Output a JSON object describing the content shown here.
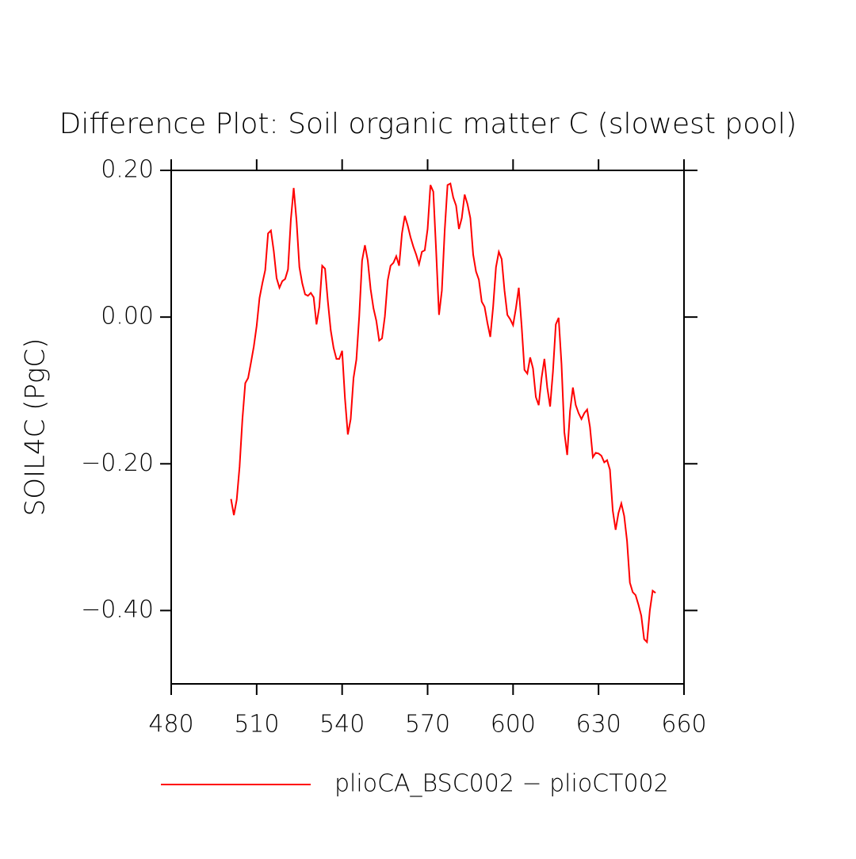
{
  "chart_data": {
    "type": "line",
    "title": "Difference Plot: Soil organic matter C (slowest pool)",
    "y_label": "SOIL4C  (PgC)",
    "xlim": [
      480,
      660
    ],
    "xticks": [
      480,
      510,
      540,
      570,
      600,
      630,
      660
    ],
    "ylim": [
      -0.5,
      0.2
    ],
    "yticks": [
      {
        "value": 0.2,
        "label": "0.20"
      },
      {
        "value": 0,
        "label": "0.00"
      },
      {
        "value": -0.2,
        "label": "−0.20"
      },
      {
        "value": -0.4,
        "label": "−0.40"
      }
    ],
    "legend": "bottom",
    "x": [
      501,
      502,
      503,
      504,
      505,
      506,
      507,
      508,
      509,
      510,
      511,
      512,
      513,
      514,
      515,
      516,
      517,
      518,
      519,
      520,
      521,
      522,
      523,
      524,
      525,
      526,
      527,
      528,
      529,
      530,
      531,
      532,
      533,
      534,
      535,
      536,
      537,
      538,
      539,
      540,
      541,
      542,
      543,
      544,
      545,
      546,
      547,
      548,
      549,
      550,
      551,
      552,
      553,
      554,
      555,
      556,
      557,
      558,
      559,
      560,
      561,
      562,
      563,
      564,
      565,
      566,
      567,
      568,
      569,
      570,
      571,
      572,
      573,
      574,
      575,
      576,
      577,
      578,
      579,
      580,
      581,
      582,
      583,
      584,
      585,
      586,
      587,
      588,
      589,
      590,
      591,
      592,
      593,
      594,
      595,
      596,
      597,
      598,
      599,
      600,
      601,
      602,
      603,
      604,
      605,
      606,
      607,
      608,
      609,
      610,
      611,
      612,
      613,
      614,
      615,
      616,
      617,
      618,
      619,
      620,
      621,
      622,
      623,
      624,
      625,
      626,
      627,
      628,
      629,
      630,
      631,
      632,
      633,
      634,
      635,
      636,
      637,
      638,
      639,
      640,
      641,
      642,
      643,
      644,
      645,
      646,
      647,
      648,
      649,
      650
    ],
    "series": [
      {
        "name": "plioCA_BSC002 − plioCT002",
        "color": "#ff0000",
        "values": [
          -0.248,
          -0.27,
          -0.249,
          -0.204,
          -0.139,
          -0.09,
          -0.083,
          -0.062,
          -0.04,
          -0.012,
          0.026,
          0.046,
          0.064,
          0.114,
          0.118,
          0.09,
          0.053,
          0.04,
          0.049,
          0.052,
          0.065,
          0.133,
          0.176,
          0.131,
          0.068,
          0.046,
          0.031,
          0.029,
          0.033,
          0.027,
          -0.01,
          0.014,
          0.07,
          0.066,
          0.021,
          -0.018,
          -0.042,
          -0.057,
          -0.057,
          -0.046,
          -0.111,
          -0.16,
          -0.139,
          -0.083,
          -0.058,
          0.001,
          0.077,
          0.098,
          0.077,
          0.038,
          0.012,
          -0.005,
          -0.032,
          -0.029,
          0.001,
          0.05,
          0.07,
          0.074,
          0.083,
          0.07,
          0.114,
          0.138,
          0.125,
          0.109,
          0.096,
          0.085,
          0.072,
          0.089,
          0.091,
          0.12,
          0.18,
          0.171,
          0.09,
          0.003,
          0.036,
          0.118,
          0.18,
          0.182,
          0.163,
          0.152,
          0.12,
          0.135,
          0.167,
          0.154,
          0.135,
          0.085,
          0.062,
          0.051,
          0.021,
          0.014,
          -0.008,
          -0.027,
          0.014,
          0.068,
          0.089,
          0.079,
          0.036,
          0.003,
          -0.003,
          -0.011,
          0.012,
          0.04,
          -0.012,
          -0.072,
          -0.077,
          -0.055,
          -0.07,
          -0.109,
          -0.12,
          -0.083,
          -0.057,
          -0.096,
          -0.122,
          -0.074,
          -0.01,
          -0.001,
          -0.064,
          -0.157,
          -0.188,
          -0.128,
          -0.096,
          -0.12,
          -0.131,
          -0.139,
          -0.131,
          -0.126,
          -0.15,
          -0.191,
          -0.185,
          -0.186,
          -0.189,
          -0.198,
          -0.195,
          -0.208,
          -0.264,
          -0.29,
          -0.267,
          -0.254,
          -0.271,
          -0.305,
          -0.362,
          -0.375,
          -0.379,
          -0.392,
          -0.407,
          -0.439,
          -0.443,
          -0.4,
          -0.373,
          -0.376
        ]
      }
    ]
  }
}
